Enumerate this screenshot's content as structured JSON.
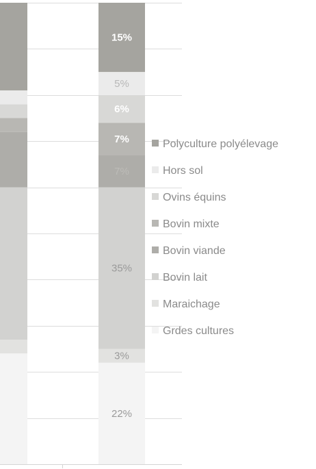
{
  "chart_data": {
    "type": "bar",
    "stacked": true,
    "percent_stacked": true,
    "categories": [
      "",
      ""
    ],
    "series": [
      {
        "name": "Grdes cultures",
        "color": "#f4f4f4",
        "values": [
          24,
          22
        ]
      },
      {
        "name": "Maraichage",
        "color": "#e2e2e0",
        "values": [
          3,
          3
        ]
      },
      {
        "name": "Bovin lait",
        "color": "#d2d2d0",
        "values": [
          33,
          35
        ]
      },
      {
        "name": "Bovin viande",
        "color": "#aeada9",
        "values": [
          12,
          7
        ]
      },
      {
        "name": "Bovin mixte",
        "color": "#b8b7b3",
        "values": [
          3,
          7
        ]
      },
      {
        "name": "Ovins équins",
        "color": "#d8d8d6",
        "values": [
          3,
          6
        ]
      },
      {
        "name": "Hors sol",
        "color": "#ebebeb",
        "values": [
          3,
          5
        ]
      },
      {
        "name": "Polyculture polyélevage",
        "color": "#a5a49f",
        "values": [
          19,
          15
        ]
      }
    ],
    "data_labels": [
      {
        "category_index": 1,
        "series_index": 0,
        "text": "22%",
        "color": "#9a9a9a"
      },
      {
        "category_index": 1,
        "series_index": 1,
        "text": "3%",
        "color": "#9a9a9a"
      },
      {
        "category_index": 1,
        "series_index": 2,
        "text": "35%",
        "color": "#9a9a9a"
      },
      {
        "category_index": 1,
        "series_index": 3,
        "text": "7%",
        "color": "#bdbcb8"
      },
      {
        "category_index": 1,
        "series_index": 4,
        "text": "7%",
        "color": "#ffffff"
      },
      {
        "category_index": 1,
        "series_index": 5,
        "text": "6%",
        "color": "#ffffff"
      },
      {
        "category_index": 1,
        "series_index": 6,
        "text": "5%",
        "color": "#b8b8b8"
      },
      {
        "category_index": 1,
        "series_index": 7,
        "text": "15%",
        "color": "#ffffff"
      }
    ],
    "legend": {
      "position": "right",
      "order": [
        "Polyculture polyélevage",
        "Hors sol",
        "Ovins équins",
        "Bovin mixte",
        "Bovin viande",
        "Bovin lait",
        "Maraichage",
        "Grdes cultures"
      ]
    },
    "ylim": [
      0,
      100
    ],
    "grid": true,
    "colors": {
      "gridline": "#dcdcdc",
      "axis": "#d4d4d4"
    }
  }
}
